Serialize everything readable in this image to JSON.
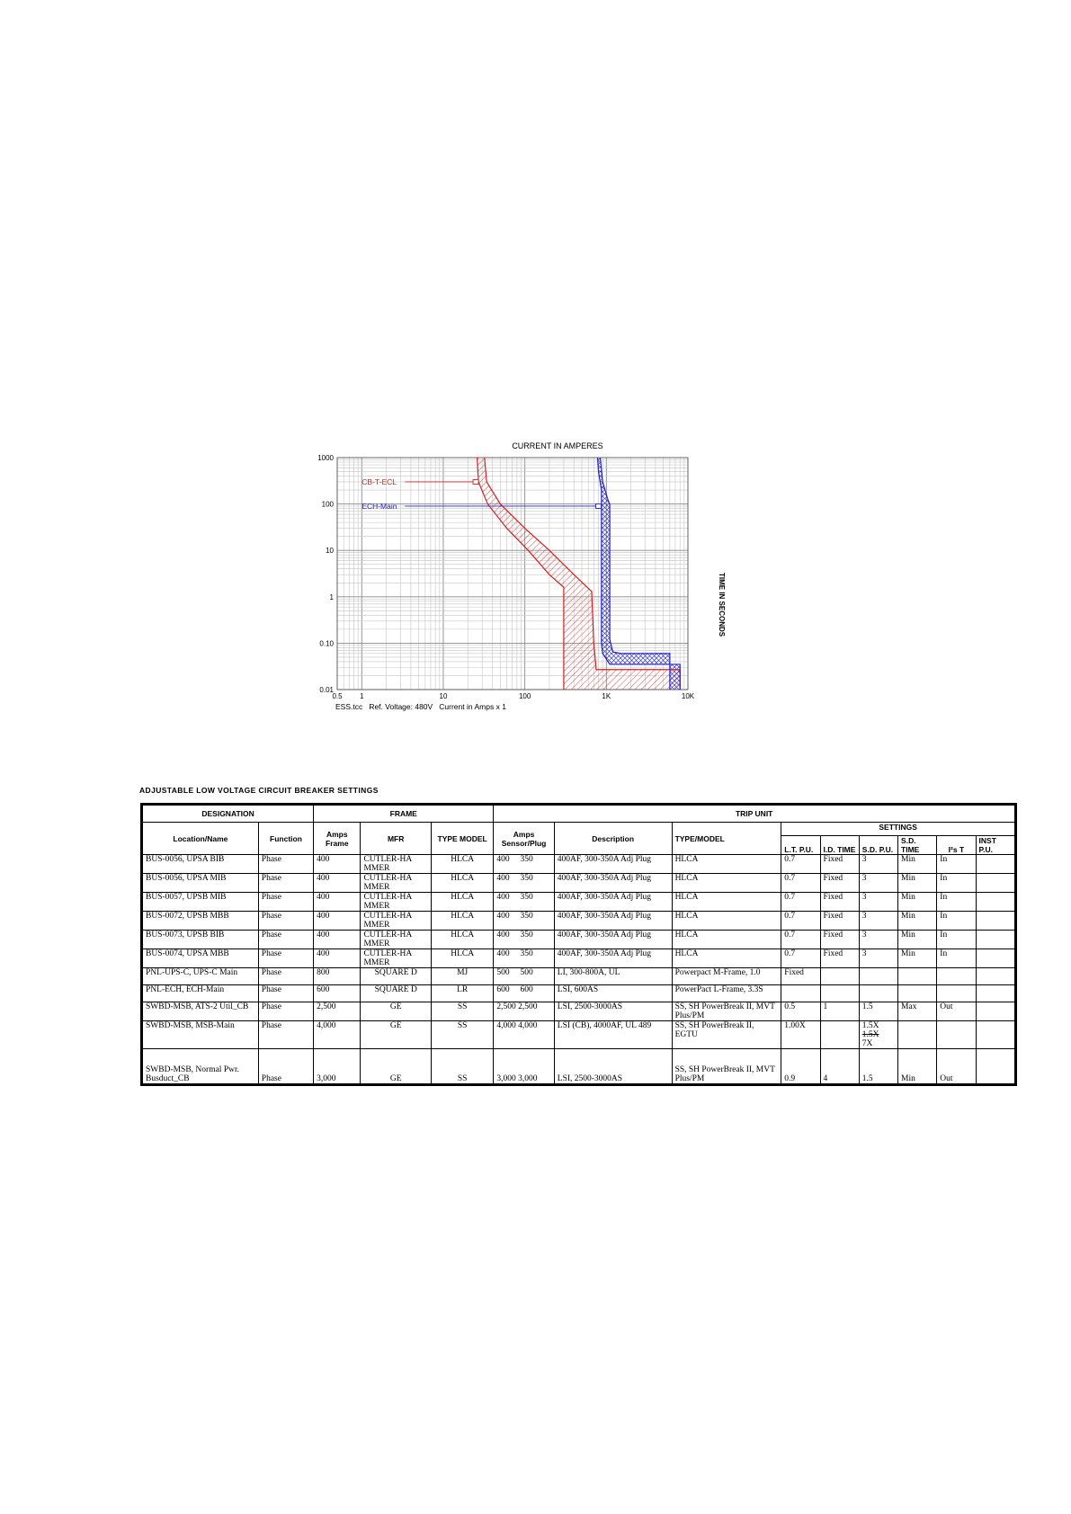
{
  "chart_data": {
    "type": "line",
    "title": "CURRENT IN AMPERES",
    "ylabel": "TIME IN SECONDS",
    "footer": "ESS.tcc   Ref. Voltage: 480V   Current in Amps x 1",
    "x_scale": "log",
    "y_scale": "log",
    "xlim": [
      0.5,
      10000
    ],
    "ylim": [
      0.01,
      1000
    ],
    "x_ticks": [
      {
        "value": 0.5,
        "label": "0.5"
      },
      {
        "value": 1,
        "label": "1"
      },
      {
        "value": 10,
        "label": "10"
      },
      {
        "value": 100,
        "label": "100"
      },
      {
        "value": 1000,
        "label": "1K"
      },
      {
        "value": 10000,
        "label": "10K"
      }
    ],
    "y_ticks": [
      {
        "value": 1000,
        "label": "1000"
      },
      {
        "value": 100,
        "label": "100"
      },
      {
        "value": 10,
        "label": "10"
      },
      {
        "value": 1,
        "label": "1"
      },
      {
        "value": 0.1,
        "label": "0.10"
      },
      {
        "value": 0.01,
        "label": "0.01"
      }
    ],
    "grid": true,
    "series": [
      {
        "name": "CB-T-ECL",
        "color": "#d02020",
        "label_at": {
          "x": 1,
          "y": 300
        },
        "marker_at": {
          "x": 25,
          "y": 300
        },
        "min_curve": [
          [
            26,
            1000
          ],
          [
            27,
            300
          ],
          [
            35,
            100
          ],
          [
            60,
            30
          ],
          [
            110,
            10
          ],
          [
            200,
            3
          ],
          [
            300,
            1.6
          ],
          [
            300,
            0.3
          ],
          [
            300,
            0.01
          ]
        ],
        "max_curve": [
          [
            32,
            1000
          ],
          [
            34,
            300
          ],
          [
            50,
            100
          ],
          [
            100,
            30
          ],
          [
            200,
            10
          ],
          [
            400,
            3
          ],
          [
            660,
            1.3
          ],
          [
            700,
            0.1
          ],
          [
            750,
            0.027
          ],
          [
            8000,
            0.027
          ],
          [
            8000,
            0.01
          ]
        ]
      },
      {
        "name": "ECH-Main",
        "color": "#2020c8",
        "label_at": {
          "x": 1,
          "y": 90
        },
        "marker_at": {
          "x": 800,
          "y": 90
        },
        "min_curve": [
          [
            780,
            1000
          ],
          [
            800,
            500
          ],
          [
            870,
            200
          ],
          [
            870,
            0.1
          ],
          [
            900,
            0.06
          ],
          [
            1100,
            0.035
          ],
          [
            8000,
            0.035
          ],
          [
            8000,
            0.01
          ]
        ],
        "max_curve": [
          [
            840,
            1000
          ],
          [
            900,
            300
          ],
          [
            1050,
            120
          ],
          [
            1100,
            100
          ],
          [
            1100,
            0.12
          ],
          [
            1200,
            0.065
          ],
          [
            1500,
            0.06
          ],
          [
            6000,
            0.06
          ],
          [
            6000,
            0.01
          ]
        ]
      }
    ]
  },
  "section_title": "ADJUSTABLE LOW VOLTAGE CIRCUIT BREAKER SETTINGS",
  "table": {
    "groups": {
      "designation": "DESIGNATION",
      "frame": "FRAME",
      "trip_unit": "TRIP UNIT",
      "settings": "SETTINGS"
    },
    "headers": {
      "location": "Location/Name",
      "function": "Function",
      "amps_frame": "Amps Frame",
      "mfr": "MFR",
      "type_model": "TYPE MODEL",
      "amps_sensor": "Amps Sensor/Plug",
      "description": "Description",
      "tu_type_model": "TYPE/MODEL",
      "lt_pu": "L.T. P.U.",
      "ld_time": "I.D. TIME",
      "sd_pu": "S.D. P.U.",
      "sd_time": "S.D. TIME",
      "i2t": "I²s T",
      "inst_pu": "INST P.U."
    },
    "rows": [
      {
        "location": "BUS-0056, UPSA BIB",
        "function": "Phase",
        "amps_frame": "400",
        "mfr": "CUTLER-HA MMER",
        "type_model": "HLCA",
        "sensor": "400",
        "plug": "350",
        "description": "400AF, 300-350A Adj Plug",
        "tu_type_model": "HLCA",
        "lt_pu": "0.7",
        "ld_time": "Fixed",
        "sd_pu": "3",
        "sd_time": "Min",
        "i2t": "In",
        "inst_pu": ""
      },
      {
        "location": "BUS-0056, UPSA MIB",
        "function": "Phase",
        "amps_frame": "400",
        "mfr": "CUTLER-HA MMER",
        "type_model": "HLCA",
        "sensor": "400",
        "plug": "350",
        "description": "400AF, 300-350A Adj Plug",
        "tu_type_model": "HLCA",
        "lt_pu": "0.7",
        "ld_time": "Fixed",
        "sd_pu": "3",
        "sd_time": "Min",
        "i2t": "In",
        "inst_pu": ""
      },
      {
        "location": "BUS-0057, UPSB MIB",
        "function": "Phase",
        "amps_frame": "400",
        "mfr": "CUTLER-HA MMER",
        "type_model": "HLCA",
        "sensor": "400",
        "plug": "350",
        "description": "400AF, 300-350A Adj Plug",
        "tu_type_model": "HLCA",
        "lt_pu": "0.7",
        "ld_time": "Fixed",
        "sd_pu": "3",
        "sd_time": "Min",
        "i2t": "In",
        "inst_pu": ""
      },
      {
        "location": "BUS-0072, UPSB MBB",
        "function": "Phase",
        "amps_frame": "400",
        "mfr": "CUTLER-HA MMER",
        "type_model": "HLCA",
        "sensor": "400",
        "plug": "350",
        "description": "400AF, 300-350A Adj Plug",
        "tu_type_model": "HLCA",
        "lt_pu": "0.7",
        "ld_time": "Fixed",
        "sd_pu": "3",
        "sd_time": "Min",
        "i2t": "In",
        "inst_pu": ""
      },
      {
        "location": "BUS-0073, UPSB BIB",
        "function": "Phase",
        "amps_frame": "400",
        "mfr": "CUTLER-HA MMER",
        "type_model": "HLCA",
        "sensor": "400",
        "plug": "350",
        "description": "400AF, 300-350A Adj Plug",
        "tu_type_model": "HLCA",
        "lt_pu": "0.7",
        "ld_time": "Fixed",
        "sd_pu": "3",
        "sd_time": "Min",
        "i2t": "In",
        "inst_pu": ""
      },
      {
        "location": "BUS-0074, UPSA MBB",
        "function": "Phase",
        "amps_frame": "400",
        "mfr": "CUTLER-HA MMER",
        "type_model": "HLCA",
        "sensor": "400",
        "plug": "350",
        "description": "400AF, 300-350A Adj Plug",
        "tu_type_model": "HLCA",
        "lt_pu": "0.7",
        "ld_time": "Fixed",
        "sd_pu": "3",
        "sd_time": "Min",
        "i2t": "In",
        "inst_pu": ""
      },
      {
        "location": "PNL-UPS-C, UPS-C Main",
        "function": "Phase",
        "amps_frame": "800",
        "mfr": "SQUARE D",
        "type_model": "MJ",
        "sensor": "500",
        "plug": "500",
        "description": "LI, 300-800A, UL",
        "tu_type_model": "Powerpact M-Frame, 1.0",
        "lt_pu": "Fixed",
        "ld_time": "",
        "sd_pu": "",
        "sd_time": "",
        "i2t": "",
        "inst_pu": ""
      },
      {
        "location": "PNL-ECH, ECH-Main",
        "function": "Phase",
        "amps_frame": "600",
        "mfr": "SQUARE D",
        "type_model": "LR",
        "sensor": "600",
        "plug": "600",
        "description": "LSI, 600AS",
        "tu_type_model": "PowerPact L-Frame, 3.3S",
        "lt_pu": "",
        "ld_time": "",
        "sd_pu": "",
        "sd_time": "",
        "i2t": "",
        "inst_pu": ""
      },
      {
        "location": "SWBD-MSB, ATS-2 Util_CB",
        "function": "Phase",
        "amps_frame": "2,500",
        "mfr": "GE",
        "type_model": "SS",
        "sensor": "2,500",
        "plug": "2,500",
        "description": "LSI, 2500-3000AS",
        "tu_type_model": "SS, SH PowerBreak II, MVT Plus/PM",
        "lt_pu": "0.5",
        "ld_time": "1",
        "sd_pu": "1.5",
        "sd_time": "Max",
        "i2t": "Out",
        "inst_pu": ""
      },
      {
        "location": "SWBD-MSB, MSB-Main",
        "function": "Phase",
        "amps_frame": "4,000",
        "mfr": "GE",
        "type_model": "SS",
        "sensor": "4,000",
        "plug": "4,000",
        "description": "LSI (CB), 4000AF, UL 489",
        "tu_type_model": "SS, SH PowerBreak II, EGTU",
        "lt_pu": "1.00X",
        "ld_time": "",
        "sd_pu": "1.5X",
        "sd_pu_2": "1.5X",
        "sd_pu_3": "7X",
        "sd_time": "",
        "i2t": "",
        "inst_pu": ""
      },
      {
        "location": "SWBD-MSB, Normal Pwr. Busduct_CB",
        "function": "Phase",
        "amps_frame": "3,000",
        "mfr": "GE",
        "type_model": "SS",
        "sensor": "3,000",
        "plug": "3,000",
        "description": "LSI, 2500-3000AS",
        "tu_type_model": "SS, SH PowerBreak II, MVT Plus/PM",
        "lt_pu": "0.9",
        "ld_time": "4",
        "sd_pu": "1.5",
        "sd_time": "Min",
        "i2t": "Out",
        "inst_pu": ""
      }
    ]
  }
}
